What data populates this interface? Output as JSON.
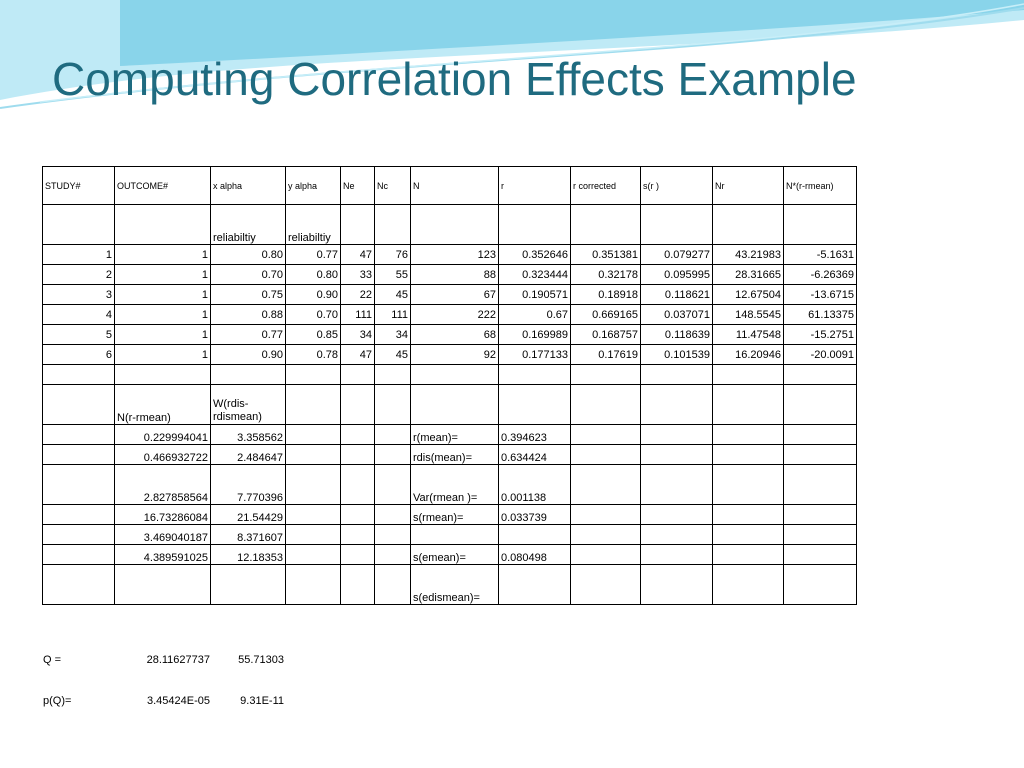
{
  "title": "Computing Correlation Effects Example",
  "colors": {
    "title": "#1f6b80",
    "wave_main": "#7fd0e8",
    "wave_light": "#c8eef8"
  },
  "headers": [
    "STUDY#",
    "OUTCOME#",
    "x alpha",
    "y alpha",
    "Ne",
    "Nc",
    "N",
    "r",
    "r corrected",
    "s(r )",
    "Nr",
    "N*(r-rmean)"
  ],
  "reliability_labels": [
    "reliabiltiy",
    "reliabiltiy"
  ],
  "studies": [
    [
      "1",
      "1",
      "0.80",
      "0.77",
      "47",
      "76",
      "123",
      "0.352646",
      "0.351381",
      "0.079277",
      "43.21983",
      "-5.1631"
    ],
    [
      "2",
      "1",
      "0.70",
      "0.80",
      "33",
      "55",
      "88",
      "0.323444",
      "0.32178",
      "0.095995",
      "28.31665",
      "-6.26369"
    ],
    [
      "3",
      "1",
      "0.75",
      "0.90",
      "22",
      "45",
      "67",
      "0.190571",
      "0.18918",
      "0.118621",
      "12.67504",
      "-13.6715"
    ],
    [
      "4",
      "1",
      "0.88",
      "0.70",
      "111",
      "111",
      "222",
      "0.67",
      "0.669165",
      "0.037071",
      "148.5545",
      "61.13375"
    ],
    [
      "5",
      "1",
      "0.77",
      "0.85",
      "34",
      "34",
      "68",
      "0.169989",
      "0.168757",
      "0.118639",
      "11.47548",
      "-15.2751"
    ],
    [
      "6",
      "1",
      "0.90",
      "0.78",
      "47",
      "45",
      "92",
      "0.177133",
      "0.17619",
      "0.101539",
      "16.20946",
      "-20.0091"
    ]
  ],
  "lower_headers": [
    "N(r-rmean)",
    "W(rdis-rdismean)"
  ],
  "lower_rows": [
    [
      "0.229994041",
      "3.358562",
      "r(mean)=",
      "0.394623"
    ],
    [
      "0.466932722",
      "2.484647",
      "rdis(mean)=",
      "0.634424"
    ],
    [
      "2.827858564",
      "7.770396",
      "Var(rmean )=",
      "0.001138"
    ],
    [
      "16.73286084",
      "21.54429",
      "s(rmean)=",
      "0.033739"
    ],
    [
      "3.469040187",
      "8.371607",
      "",
      ""
    ],
    [
      "4.389591025",
      "12.18353",
      "s(emean)=",
      "0.080498"
    ]
  ],
  "last_label": "s(edismean)=",
  "q": {
    "label": "Q =",
    "v1": "28.11627737",
    "v2": "55.71303"
  },
  "pq": {
    "label": "p(Q)=",
    "v1": "3.45424E-05",
    "v2": "9.31E-11"
  }
}
